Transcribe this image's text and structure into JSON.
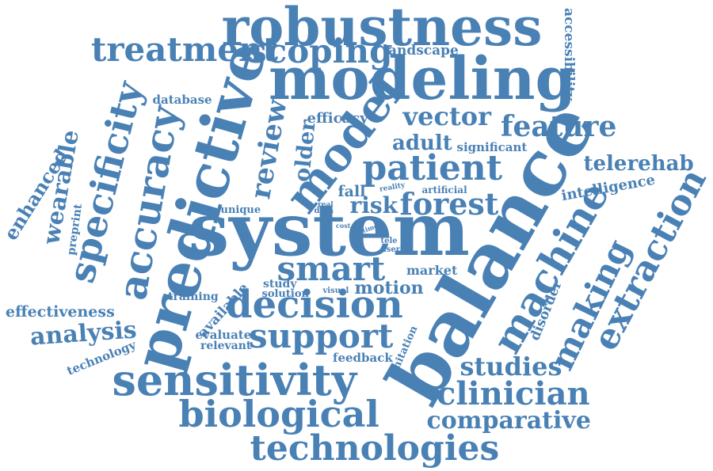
{
  "word_color": "#4a81b5",
  "background": "#ffffff",
  "words": {
    "robustness": "robustness",
    "modeling": "modeling",
    "treatment": "treatment",
    "scoping": "scoping",
    "landscape": "landscape",
    "accessibility": "accessibility",
    "predictive": "predictive",
    "model": "model",
    "accuracy": "accuracy",
    "specificity": "specificity",
    "wearable": "wearable",
    "enhanced": "enhanced",
    "database": "database",
    "review": "review",
    "efficacy": "efficacy",
    "vector": "vector",
    "feature": "feature",
    "older": "older",
    "adult": "adult",
    "significant": "significant",
    "patient": "patient",
    "telerehab": "telerehab",
    "balance": "balance",
    "intelligence": "intelligence",
    "extraction": "extraction",
    "fall": "fall",
    "reality": "reality",
    "artificial": "artificial",
    "risk": "risk",
    "forest": "forest",
    "unique": "unique",
    "real": "real",
    "data": "data",
    "preprint": "preprint",
    "system": "system",
    "cost": "cost",
    "aim": "aim",
    "time": "time",
    "tele": "tele",
    "user": "user",
    "machine": "machine",
    "smart": "smart",
    "market": "market",
    "study": "study",
    "solution": "solution",
    "visual": "visual",
    "motion": "motion",
    "making": "making",
    "training": "training",
    "available": "available",
    "decision": "decision",
    "effectiveness": "effectiveness",
    "analysis": "analysis",
    "evaluate": "evaluate",
    "relevant": "relevant",
    "support": "support",
    "disorder": "disorder",
    "technology": "technology",
    "feedback": "feedback",
    "limitation": "limitation",
    "sensitivity": "sensitivity",
    "studies": "studies",
    "clinician": "clinician",
    "biological": "biological",
    "comparative": "comparative",
    "technologies": "technologies"
  }
}
